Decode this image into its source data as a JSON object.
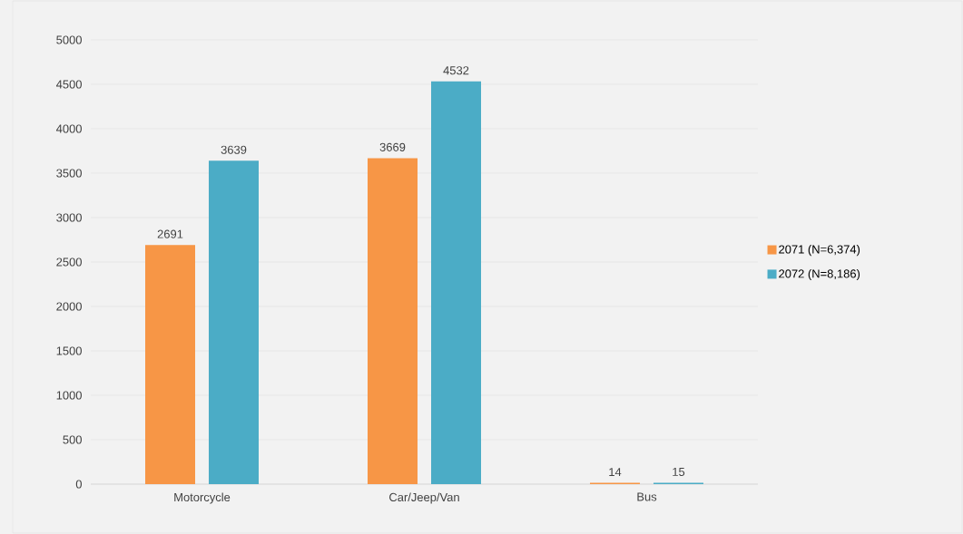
{
  "chart_data": {
    "type": "bar",
    "categories": [
      "Motorcycle",
      "Car/Jeep/Van",
      "Bus"
    ],
    "series": [
      {
        "name": "2071 (N=6,374)",
        "color": "#f79646",
        "values": [
          2691,
          3669,
          14
        ]
      },
      {
        "name": "2072 (N=8,186)",
        "color": "#4bacc6",
        "values": [
          3639,
          4532,
          15
        ]
      }
    ],
    "ylim": [
      0,
      5000
    ],
    "yticks": [
      0,
      500,
      1000,
      1500,
      2000,
      2500,
      3000,
      3500,
      4000,
      4500,
      5000
    ],
    "grid": "y",
    "legend": "right",
    "data_labels": true
  }
}
